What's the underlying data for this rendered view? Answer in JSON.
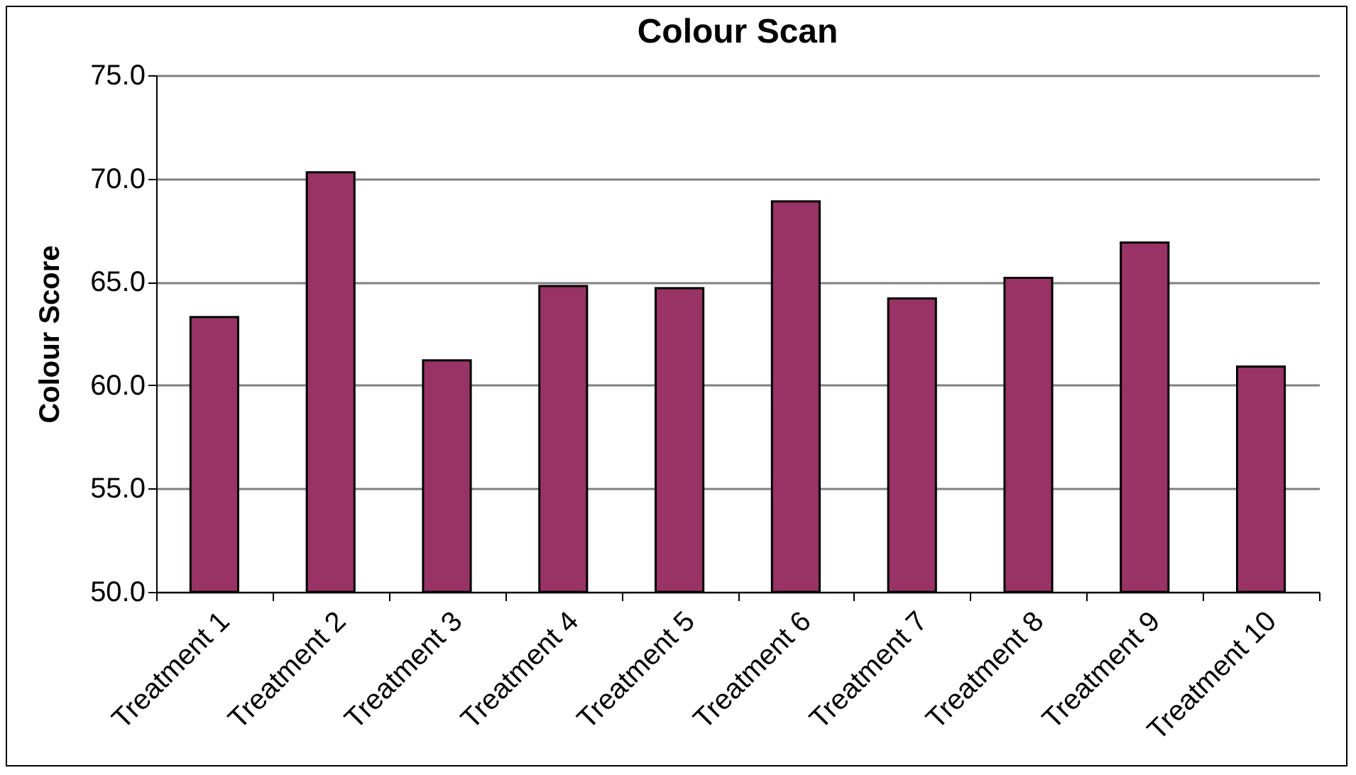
{
  "chart_data": {
    "type": "bar",
    "title": "Colour Scan",
    "ylabel": "Colour Score",
    "categories": [
      "Treatment 1",
      "Treatment 2",
      "Treatment 3",
      "Treatment 4",
      "Treatment 5",
      "Treatment 6",
      "Treatment 7",
      "Treatment 8",
      "Treatment 9",
      "Treatment 10"
    ],
    "values": [
      63.3,
      70.3,
      61.2,
      64.8,
      64.7,
      68.9,
      64.2,
      65.2,
      66.9,
      60.9
    ],
    "color": "#993366",
    "ylim": [
      50,
      75
    ],
    "yticks": [
      {
        "value": 50,
        "label": "50.0"
      },
      {
        "value": 55,
        "label": "55.0"
      },
      {
        "value": 60,
        "label": "60.0"
      },
      {
        "value": 65,
        "label": "65.0"
      },
      {
        "value": 70,
        "label": "70.0"
      },
      {
        "value": 75,
        "label": "75.0"
      }
    ],
    "grid": "y"
  }
}
